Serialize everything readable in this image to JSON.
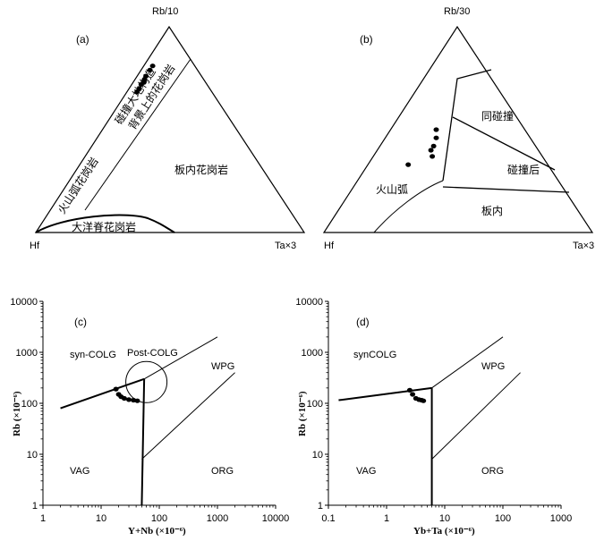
{
  "chart_data": [
    {
      "panel": "a",
      "type": "ternary",
      "panel_label": "(a)",
      "vertices": {
        "top": "Rb/10",
        "left": "Hf",
        "right": "Ta×3"
      },
      "fields": [
        "碰撞大地构造背景上的花岗岩",
        "火山弧花岗岩",
        "板内花岗岩",
        "大洋脊花岗岩"
      ],
      "field_lines": [
        "碰撞大地构造",
        "背景上的花岗岩"
      ],
      "samples": [
        [
          0.79,
          0.177,
          0.033
        ],
        [
          0.81,
          0.157,
          0.033
        ],
        [
          0.76,
          0.207,
          0.033
        ],
        [
          0.745,
          0.22,
          0.035
        ],
        [
          0.73,
          0.23,
          0.04
        ],
        [
          0.72,
          0.245,
          0.035
        ],
        [
          0.7,
          0.262,
          0.038
        ],
        [
          0.685,
          0.278,
          0.037
        ]
      ]
    },
    {
      "panel": "b",
      "type": "ternary",
      "panel_label": "(b)",
      "vertices": {
        "top": "Rb/30",
        "left": "Hf",
        "right": "Ta×3"
      },
      "fields": [
        "同碰撞",
        "碰撞后",
        "火山弧",
        "板内"
      ],
      "samples": [
        [
          0.5,
          0.33,
          0.17
        ],
        [
          0.46,
          0.35,
          0.19
        ],
        [
          0.42,
          0.38,
          0.2
        ],
        [
          0.4,
          0.4,
          0.2
        ],
        [
          0.37,
          0.41,
          0.22
        ],
        [
          0.33,
          0.52,
          0.15
        ]
      ]
    },
    {
      "panel": "c",
      "type": "scatter",
      "panel_label": "(c)",
      "xlabel": "Y+Nb (×10⁻⁶)",
      "ylabel": "Rb (×10⁻⁶)",
      "x_scale": "log",
      "y_scale": "log",
      "xlim": [
        1,
        10000
      ],
      "ylim": [
        1,
        10000
      ],
      "x_ticks": [
        "1",
        "10",
        "100",
        "1000",
        "10000"
      ],
      "y_ticks": [
        "1",
        "10",
        "100",
        "1000",
        "10000"
      ],
      "fields": [
        "syn-COLG",
        "Post-COLG",
        "WPG",
        "VAG",
        "ORG"
      ],
      "points": {
        "x": [
          18,
          20,
          22,
          25,
          30,
          36,
          42
        ],
        "y": [
          190,
          150,
          135,
          125,
          118,
          115,
          112
        ]
      }
    },
    {
      "panel": "d",
      "type": "scatter",
      "panel_label": "(d)",
      "xlabel": "Yb+Ta (×10⁻⁶)",
      "ylabel": "Rb (×10⁻⁶)",
      "x_scale": "log",
      "y_scale": "log",
      "xlim": [
        0.1,
        1000
      ],
      "ylim": [
        1,
        10000
      ],
      "x_ticks": [
        "0.1",
        "1",
        "10",
        "100",
        "1000"
      ],
      "y_ticks": [
        "1",
        "10",
        "100",
        "1000",
        "10000"
      ],
      "fields": [
        "synCOLG",
        "WPG",
        "VAG",
        "ORG"
      ],
      "points": {
        "x": [
          2.5,
          2.8,
          3.2,
          3.6,
          4.0,
          4.3
        ],
        "y": [
          180,
          150,
          125,
          118,
          115,
          112
        ]
      }
    }
  ]
}
